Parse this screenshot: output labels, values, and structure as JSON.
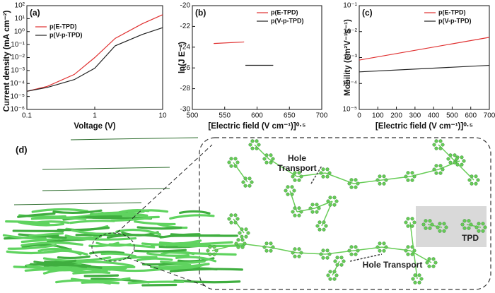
{
  "chart_data": [
    {
      "type": "line",
      "panel_label": "(a)",
      "xlabel": "Voltage (V)",
      "ylabel": "Current density (mA cm⁻²)",
      "xscale": "log",
      "yscale": "log",
      "xlim": [
        0.1,
        10
      ],
      "ylim": [
        1e-06,
        100
      ],
      "xticks": [
        {
          "value": 0.1,
          "label": "0.1"
        },
        1,
        10
      ],
      "yticks": [
        {
          "value": 1e-06,
          "label": "10⁻⁶"
        },
        {
          "value": 1e-05,
          "label": "10⁻⁵"
        },
        {
          "value": 0.0001,
          "label": "10⁻⁴"
        },
        {
          "value": 0.001,
          "label": "10⁻³"
        },
        {
          "value": 0.01,
          "label": "10⁻²"
        },
        {
          "value": 0.1,
          "label": "10⁻¹"
        },
        {
          "value": 1,
          "label": "10⁰"
        },
        {
          "value": 10,
          "label": "10¹"
        },
        {
          "value": 100,
          "label": "10²"
        }
      ],
      "legend": "upper left",
      "series": [
        {
          "name": "p(E-TPD)",
          "color": "#e03030",
          "x": [
            0.1,
            0.2,
            0.5,
            1,
            2,
            5,
            10
          ],
          "values": [
            2.5e-05,
            6e-05,
            0.0005,
            0.01,
            0.3,
            4,
            20
          ]
        },
        {
          "name": "p(V-p-TPD)",
          "color": "#222222",
          "x": [
            0.1,
            0.2,
            0.5,
            1,
            2,
            5,
            10
          ],
          "values": [
            2.5e-05,
            5e-05,
            0.0002,
            0.0015,
            0.08,
            0.6,
            2
          ]
        }
      ]
    },
    {
      "type": "line",
      "panel_label": "(b)",
      "xlabel": "[Electric field (V cm⁻¹)]⁰·⁵",
      "ylabel": "ln(J E⁻²)",
      "xlim": [
        500,
        700
      ],
      "ylim": [
        -30,
        -20
      ],
      "xticks": [
        500,
        550,
        600,
        650,
        700
      ],
      "yticks": [
        -30,
        -28,
        -26,
        -24,
        -22,
        -20
      ],
      "legend": "upper right",
      "series": [
        {
          "name": "p(E-TPD)",
          "color": "#e03030",
          "x": [
            533,
            580
          ],
          "values": [
            -23.65,
            -23.5
          ]
        },
        {
          "name": "p(V-p-TPD)",
          "color": "#222222",
          "x": [
            582,
            625
          ],
          "values": [
            -25.75,
            -25.75
          ]
        }
      ]
    },
    {
      "type": "line",
      "panel_label": "(c)",
      "xlabel": "[Electric field (V cm⁻¹)]⁰·⁵",
      "ylabel": "Mobility (cm²V⁻¹s⁻¹)",
      "yscale": "log",
      "xlim": [
        0,
        700
      ],
      "ylim": [
        1e-05,
        0.1
      ],
      "xticks": [
        0,
        100,
        200,
        300,
        400,
        500,
        600,
        700
      ],
      "yticks": [
        {
          "value": 1e-05,
          "label": "10⁻⁵"
        },
        {
          "value": 0.0001,
          "label": "10⁻⁴"
        },
        {
          "value": 0.001,
          "label": "10⁻³"
        },
        {
          "value": 0.01,
          "label": "10⁻²"
        },
        {
          "value": 0.1,
          "label": "10⁻¹"
        }
      ],
      "legend": "upper right",
      "series": [
        {
          "name": "p(E-TPD)",
          "color": "#e03030",
          "x": [
            0,
            700
          ],
          "values": [
            0.0008,
            0.006
          ]
        },
        {
          "name": "p(V-p-TPD)",
          "color": "#222222",
          "x": [
            0,
            700
          ],
          "values": [
            0.00028,
            0.0005
          ]
        }
      ]
    }
  ],
  "figure": {
    "panel_label": "(d)",
    "hole_transport_top": "Hole Transport",
    "hole_transport_bottom": "Hole Transport",
    "tpd_label": "TPD"
  }
}
